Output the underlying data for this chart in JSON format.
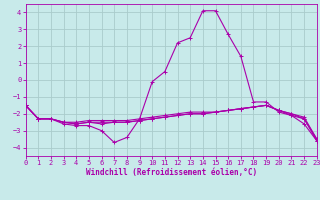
{
  "background_color": "#c8eaea",
  "grid_color": "#aacccc",
  "line_color": "#aa00aa",
  "marker": "+",
  "xlabel": "Windchill (Refroidissement éolien,°C)",
  "xlim": [
    0,
    23
  ],
  "ylim": [
    -4.5,
    4.5
  ],
  "yticks": [
    -4,
    -3,
    -2,
    -1,
    0,
    1,
    2,
    3,
    4
  ],
  "xticks": [
    0,
    1,
    2,
    3,
    4,
    5,
    6,
    7,
    8,
    9,
    10,
    11,
    12,
    13,
    14,
    15,
    16,
    17,
    18,
    19,
    20,
    21,
    22,
    23
  ],
  "lines": [
    [
      0,
      -1.5,
      1,
      -2.3,
      2,
      -2.3,
      3,
      -2.6,
      4,
      -2.7,
      5,
      -2.7,
      6,
      -3.0,
      7,
      -3.7,
      8,
      -3.4,
      9,
      -2.3,
      10,
      -0.1,
      11,
      0.5,
      12,
      2.2,
      13,
      2.5,
      14,
      4.1,
      15,
      4.1,
      16,
      2.7,
      17,
      1.4,
      18,
      -1.3,
      19,
      -1.3,
      20,
      -1.9,
      21,
      -2.1,
      22,
      -2.6,
      23,
      -3.6
    ],
    [
      0,
      -1.5,
      1,
      -2.3,
      2,
      -2.3,
      3,
      -2.5,
      4,
      -2.5,
      5,
      -2.4,
      6,
      -2.4,
      7,
      -2.4,
      8,
      -2.4,
      9,
      -2.3,
      10,
      -2.2,
      11,
      -2.1,
      12,
      -2.0,
      13,
      -1.9,
      14,
      -1.9,
      15,
      -1.9,
      16,
      -1.8,
      17,
      -1.7,
      18,
      -1.6,
      19,
      -1.5,
      20,
      -1.8,
      21,
      -2.0,
      22,
      -2.2,
      23,
      -3.5
    ],
    [
      0,
      -1.5,
      1,
      -2.3,
      2,
      -2.3,
      3,
      -2.5,
      4,
      -2.6,
      5,
      -2.5,
      6,
      -2.5,
      7,
      -2.5,
      8,
      -2.5,
      9,
      -2.4,
      10,
      -2.3,
      11,
      -2.2,
      12,
      -2.1,
      13,
      -2.0,
      14,
      -2.0,
      15,
      -1.9,
      16,
      -1.8,
      17,
      -1.7,
      18,
      -1.6,
      19,
      -1.5,
      20,
      -1.8,
      21,
      -2.1,
      22,
      -2.3,
      23,
      -3.6
    ],
    [
      0,
      -1.5,
      1,
      -2.3,
      2,
      -2.3,
      3,
      -2.5,
      4,
      -2.6,
      5,
      -2.5,
      6,
      -2.6,
      7,
      -2.5,
      8,
      -2.5,
      9,
      -2.4,
      10,
      -2.3,
      11,
      -2.2,
      12,
      -2.1,
      13,
      -2.0,
      14,
      -2.0,
      15,
      -1.9,
      16,
      -1.8,
      17,
      -1.7,
      18,
      -1.6,
      19,
      -1.5,
      20,
      -1.8,
      21,
      -2.0,
      22,
      -2.3,
      23,
      -3.5
    ]
  ],
  "tick_fontsize": 5.0,
  "xlabel_fontsize": 5.5,
  "linewidth": 0.8,
  "markersize": 3.0,
  "markeredgewidth": 0.7
}
